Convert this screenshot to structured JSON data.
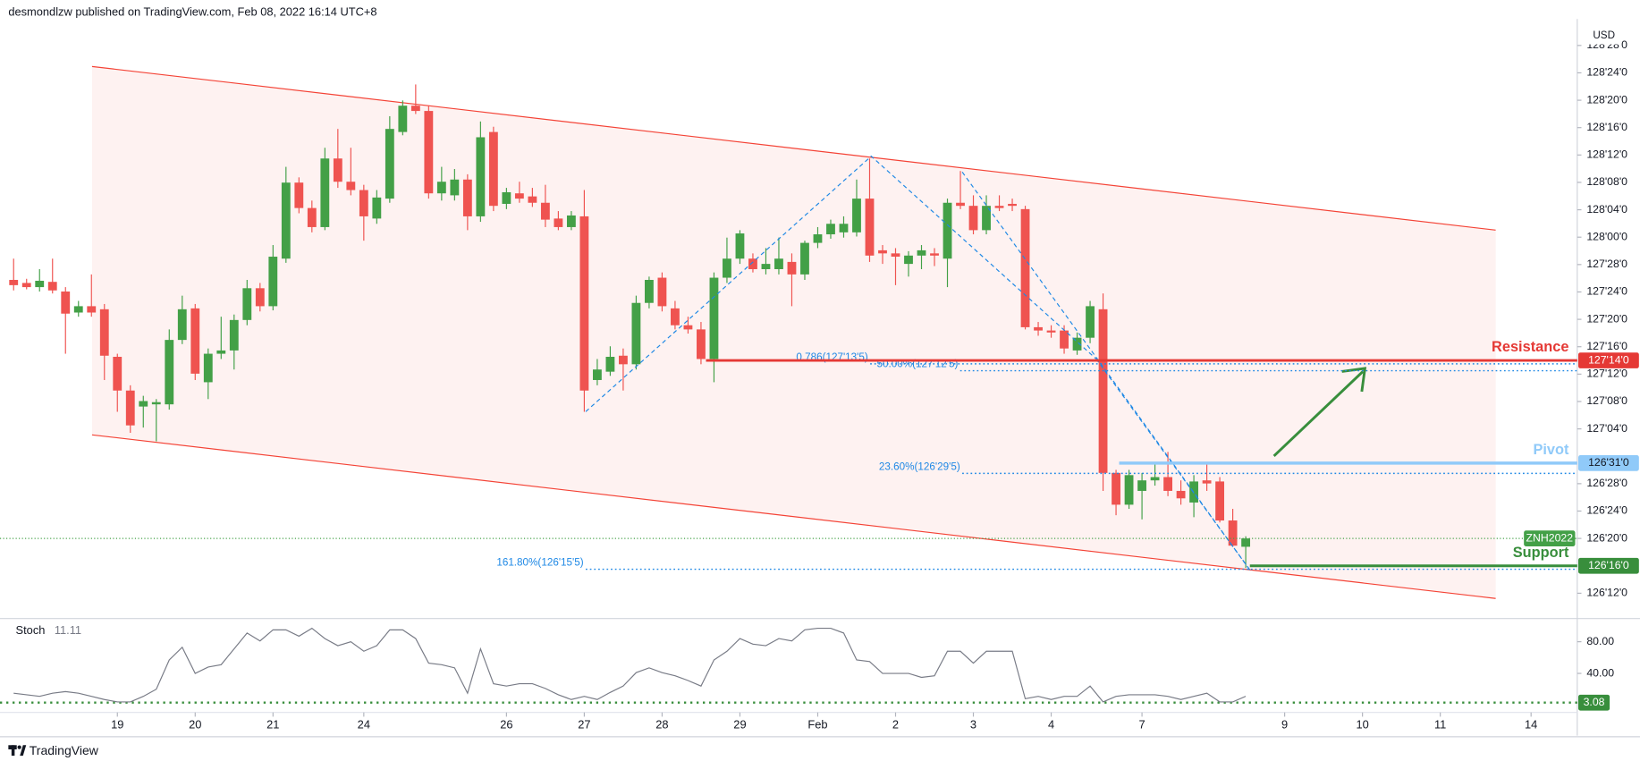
{
  "header": {
    "text": "desmondlzw published on TradingView.com, Feb 08, 2022 16:14 UTC+8"
  },
  "footer": {
    "brand": "TradingView"
  },
  "chart_data": [
    {
      "type": "candlestick",
      "currency": "USD",
      "xlim": [
        -1.05,
        120.56
      ],
      "xticks": [
        {
          "value": 8,
          "label": "19"
        },
        {
          "value": 14,
          "label": "20"
        },
        {
          "value": 20,
          "label": "21"
        },
        {
          "value": 27,
          "label": "24"
        },
        {
          "value": 38,
          "label": "26"
        },
        {
          "value": 44,
          "label": "27"
        },
        {
          "value": 50,
          "label": "28"
        },
        {
          "value": 56,
          "label": "29"
        },
        {
          "value": 62,
          "label": "Feb"
        },
        {
          "value": 68,
          "label": "2"
        },
        {
          "value": 74,
          "label": "3"
        },
        {
          "value": 80,
          "label": "4"
        },
        {
          "value": 87,
          "label": "7"
        },
        {
          "value": 98,
          "label": "9"
        },
        {
          "value": 104,
          "label": "10"
        },
        {
          "value": 110,
          "label": "11"
        },
        {
          "value": 117,
          "label": "14"
        }
      ],
      "ylim": [
        126.2644,
        128.9957
      ],
      "yticks": [
        {
          "value": 128.875,
          "label": "128'28'0"
        },
        {
          "value": 128.75,
          "label": "128'24'0"
        },
        {
          "value": 128.625,
          "label": "128'20'0"
        },
        {
          "value": 128.5,
          "label": "128'16'0"
        },
        {
          "value": 128.375,
          "label": "128'12'0"
        },
        {
          "value": 128.25,
          "label": "128'08'0"
        },
        {
          "value": 128.125,
          "label": "128'04'0"
        },
        {
          "value": 128.0,
          "label": "128'00'0"
        },
        {
          "value": 127.875,
          "label": "127'28'0"
        },
        {
          "value": 127.75,
          "label": "127'24'0"
        },
        {
          "value": 127.625,
          "label": "127'20'0"
        },
        {
          "value": 127.5,
          "label": "127'16'0"
        },
        {
          "value": 127.375,
          "label": "127'12'0"
        },
        {
          "value": 127.25,
          "label": "127'08'0"
        },
        {
          "value": 127.125,
          "label": "127'04'0"
        },
        {
          "value": 126.875,
          "label": "126'28'0"
        },
        {
          "value": 126.75,
          "label": "126'24'0"
        },
        {
          "value": 126.625,
          "label": "126'20'0"
        },
        {
          "value": 126.375,
          "label": "126'12'0"
        }
      ],
      "grid": false,
      "series": [
        {
          "name": "ZNH2022",
          "up_color": "#43a047",
          "down_color": "#ef5350",
          "open": [
            127.805,
            127.791,
            127.772,
            127.796,
            127.752,
            127.656,
            127.685,
            127.671,
            127.454,
            127.3,
            127.227,
            127.237,
            127.237,
            127.531,
            127.675,
            127.338,
            127.468,
            127.483,
            127.622,
            127.767,
            127.685,
            127.902,
            128.249,
            128.133,
            128.046,
            128.359,
            128.253,
            128.215,
            128.085,
            128.176,
            128.48,
            128.6,
            128.576,
            128.2,
            128.191,
            128.263,
            128.095,
            128.48,
            128.152,
            128.2,
            128.186,
            128.157,
            128.085,
            128.046,
            128.095,
            127.348,
            127.386,
            127.459,
            127.42,
            127.7,
            127.815,
            127.675,
            127.598,
            127.579,
            127.444,
            127.815,
            127.902,
            127.902,
            127.854,
            127.854,
            127.887,
            127.83,
            127.974,
            128.013,
            128.022,
            128.022,
            128.176,
            127.94,
            127.926,
            127.878,
            127.916,
            127.926,
            127.902,
            128.157,
            128.143,
            128.032,
            128.143,
            128.152,
            128.128,
            127.589,
            127.574,
            127.574,
            127.483,
            127.541,
            127.671,
            126.924,
            126.779,
            126.842,
            126.89,
            126.905,
            126.842,
            126.789,
            126.89,
            126.885,
            126.707,
            126.587
          ],
          "high": [
            127.902,
            127.81,
            127.854,
            127.902,
            127.772,
            127.709,
            127.83,
            127.695,
            127.468,
            127.324,
            127.276,
            127.261,
            127.579,
            127.733,
            127.695,
            127.492,
            127.637,
            127.647,
            127.805,
            127.791,
            127.964,
            128.321,
            128.273,
            128.167,
            128.408,
            128.494,
            128.408,
            128.239,
            128.215,
            128.552,
            128.624,
            128.697,
            128.6,
            128.321,
            128.311,
            128.287,
            128.528,
            128.504,
            128.225,
            128.253,
            128.225,
            128.239,
            128.119,
            128.119,
            128.215,
            127.444,
            127.502,
            127.492,
            127.733,
            127.82,
            127.839,
            127.709,
            127.637,
            127.613,
            127.839,
            127.998,
            128.032,
            127.926,
            127.95,
            127.998,
            127.926,
            127.984,
            128.046,
            128.08,
            128.095,
            128.263,
            128.359,
            127.964,
            127.95,
            127.936,
            127.964,
            127.95,
            128.176,
            128.302,
            128.191,
            128.191,
            128.191,
            128.176,
            128.143,
            127.613,
            127.598,
            127.598,
            127.565,
            127.709,
            127.743,
            126.938,
            126.938,
            126.924,
            126.972,
            127.02,
            126.89,
            126.914,
            126.963,
            126.905,
            126.76,
            126.635
          ],
          "low": [
            127.757,
            127.762,
            127.752,
            127.743,
            127.468,
            127.637,
            127.637,
            127.348,
            127.203,
            127.107,
            127.131,
            127.068,
            127.213,
            127.512,
            127.348,
            127.261,
            127.444,
            127.396,
            127.598,
            127.661,
            127.666,
            127.883,
            128.109,
            128.022,
            128.032,
            128.225,
            128.191,
            127.984,
            128.061,
            128.157,
            128.465,
            128.562,
            128.176,
            128.167,
            128.167,
            128.032,
            128.07,
            128.119,
            128.128,
            128.157,
            128.138,
            128.046,
            128.032,
            128.032,
            127.203,
            127.324,
            127.367,
            127.3,
            127.396,
            127.675,
            127.661,
            127.579,
            127.56,
            127.42,
            127.338,
            127.791,
            127.878,
            127.839,
            127.83,
            127.83,
            127.685,
            127.805,
            127.95,
            127.993,
            127.998,
            128.003,
            127.887,
            127.878,
            127.781,
            127.82,
            127.854,
            127.868,
            127.772,
            128.128,
            128.013,
            128.013,
            128.119,
            128.119,
            127.579,
            127.55,
            127.541,
            127.468,
            127.463,
            127.516,
            126.842,
            126.731,
            126.76,
            126.712,
            126.866,
            126.818,
            126.779,
            126.722,
            126.842,
            126.698,
            126.587,
            126.49
          ],
          "close": [
            127.781,
            127.772,
            127.801,
            127.757,
            127.651,
            127.685,
            127.656,
            127.459,
            127.3,
            127.141,
            127.252,
            127.247,
            127.531,
            127.671,
            127.377,
            127.468,
            127.483,
            127.622,
            127.767,
            127.685,
            127.911,
            128.249,
            128.133,
            128.046,
            128.359,
            128.253,
            128.215,
            128.095,
            128.181,
            128.494,
            128.6,
            128.576,
            128.2,
            128.253,
            128.263,
            128.095,
            128.456,
            128.143,
            128.205,
            128.176,
            128.157,
            128.08,
            128.046,
            128.099,
            127.3,
            127.396,
            127.454,
            127.42,
            127.7,
            127.805,
            127.685,
            127.598,
            127.579,
            127.444,
            127.815,
            127.902,
            128.017,
            127.854,
            127.878,
            127.902,
            127.83,
            127.974,
            128.013,
            128.061,
            128.061,
            128.176,
            127.916,
            127.926,
            127.911,
            127.916,
            127.94,
            127.916,
            128.157,
            128.143,
            128.032,
            128.143,
            128.133,
            128.143,
            127.589,
            127.574,
            127.565,
            127.492,
            127.541,
            127.685,
            126.924,
            126.779,
            126.914,
            126.89,
            126.905,
            126.842,
            126.808,
            126.885,
            126.876,
            126.707,
            126.592,
            126.625
          ]
        }
      ],
      "levels": [
        {
          "name": "Resistance",
          "value": 127.4375,
          "label": "127'14'0",
          "color": "#e53935"
        },
        {
          "name": "Pivot",
          "value": 126.96875,
          "label": "126'31'0",
          "color": "#90caf9"
        },
        {
          "name": "Support",
          "value": 126.5,
          "label": "126'16'0",
          "color": "#388e3c"
        }
      ],
      "fib_color": "#1e88e5",
      "fib_levels": [
        {
          "label": "0.786(127'13'5)",
          "value": 127.421875
        },
        {
          "label": "50.00%(127'12'5)",
          "value": 127.390625
        },
        {
          "label": "23.60%(126'29'5)",
          "value": 126.921875
        },
        {
          "label": "161.80%(126'15'5)",
          "value": 126.484375
        }
      ]
    },
    {
      "type": "line",
      "title": "Stoch",
      "ylim": [
        -9.33,
        106.67
      ],
      "yticks": [
        {
          "value": 80,
          "label": "80.00"
        },
        {
          "value": 40,
          "label": "40.00"
        }
      ],
      "series": [
        {
          "name": "Stoch",
          "color": "#787b86",
          "values": [
            15,
            13,
            11,
            15,
            17,
            15,
            11,
            7,
            4,
            4,
            11,
            20,
            57,
            73,
            40,
            48,
            51,
            71,
            91,
            81,
            95,
            95,
            87,
            97,
            84,
            75,
            80,
            68,
            75,
            95,
            95,
            84,
            53,
            51,
            47,
            15,
            71,
            27,
            24,
            27,
            27,
            21,
            13,
            7,
            11,
            7,
            16,
            24,
            41,
            47,
            41,
            37,
            31,
            24,
            57,
            68,
            84,
            77,
            75,
            84,
            81,
            95,
            97,
            97,
            91,
            57,
            55,
            40,
            40,
            40,
            35,
            37,
            68,
            68,
            53,
            68,
            68,
            68,
            8,
            11,
            7,
            11,
            11,
            24,
            4,
            11,
            13,
            13,
            13,
            11,
            7,
            11,
            15,
            4,
            4,
            11.11
          ]
        }
      ],
      "level": {
        "value": 3.08,
        "label": "3.08",
        "color": "#388e3c"
      }
    }
  ]
}
